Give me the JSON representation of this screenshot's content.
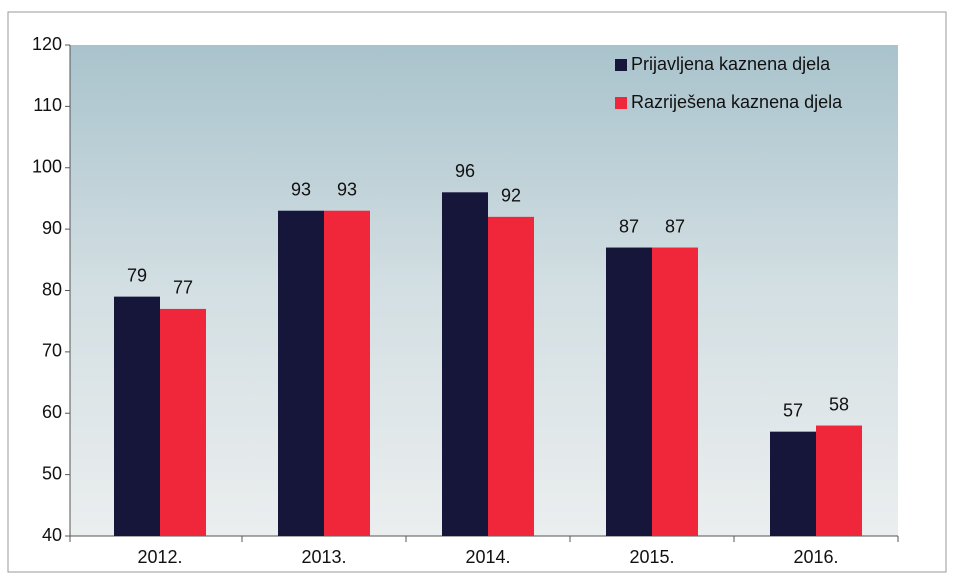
{
  "chart_data": {
    "type": "bar",
    "categories": [
      "2012.",
      "2013.",
      "2014.",
      "2015.",
      "2016."
    ],
    "series": [
      {
        "name": "Prijavljena kaznena djela",
        "color": "#16163a",
        "values": [
          79,
          93,
          96,
          87,
          57
        ]
      },
      {
        "name": "Razriješena kaznena djela",
        "color": "#f0263a",
        "values": [
          77,
          93,
          92,
          87,
          58
        ]
      }
    ],
    "ylim": [
      40,
      120
    ],
    "yticks": [
      40,
      50,
      60,
      70,
      80,
      90,
      100,
      110,
      120
    ],
    "grid": false,
    "legend": "upper right"
  }
}
